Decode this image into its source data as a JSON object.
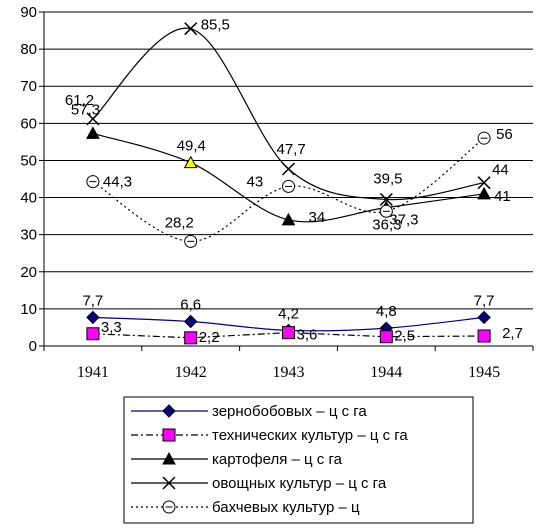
{
  "chart_data": {
    "type": "line",
    "categories": [
      "1941",
      "1942",
      "1943",
      "1944",
      "1945"
    ],
    "ylim": [
      0,
      90
    ],
    "yticks": [
      0,
      10,
      20,
      30,
      40,
      50,
      60,
      70,
      80,
      90
    ],
    "grid": true,
    "legend_position": "bottom",
    "series": [
      {
        "key": "grain",
        "name": "зернобобовых – ц с га",
        "values": [
          7.7,
          6.6,
          4.2,
          4.8,
          7.7
        ],
        "labels": [
          "7,7",
          "6,6",
          "4,2",
          "4,8",
          "7,7"
        ],
        "color": "#000080",
        "marker_color": "#000080",
        "line_style": "solid",
        "marker": "diamond",
        "smooth": true
      },
      {
        "key": "tech",
        "name": "технических культур – ц с га",
        "values": [
          3.3,
          2.2,
          3.6,
          2.5,
          2.7
        ],
        "labels": [
          "3,3",
          "2,2",
          "3,6",
          "2,5",
          "2,7"
        ],
        "color": "#000000",
        "marker_color": "#ff00ff",
        "line_style": "dashdot",
        "marker": "square",
        "smooth": false
      },
      {
        "key": "potato",
        "name": "картофеля – ц с га",
        "values": [
          57.3,
          49.4,
          34,
          37.3,
          41
        ],
        "labels": [
          "57,3",
          "49,4",
          "34",
          "37,3",
          "41"
        ],
        "color": "#000000",
        "marker_color": "#000000",
        "highlight_marker_color": "#ffff00",
        "line_style": "solid",
        "marker": "triangle",
        "smooth": true
      },
      {
        "key": "veg",
        "name": "овощных культур – ц с га",
        "values": [
          61.2,
          85.5,
          47.7,
          39.5,
          44
        ],
        "labels": [
          "61,2",
          "85,5",
          "47,7",
          "39,5",
          "44"
        ],
        "color": "#000000",
        "marker_color": "#000000",
        "line_style": "solid",
        "marker": "x",
        "smooth": true
      },
      {
        "key": "melon",
        "name": "бахчевых культур – ц",
        "values": [
          44.3,
          28.2,
          43,
          36.3,
          56
        ],
        "labels": [
          "44,3",
          "28,2",
          "43",
          "36,3",
          "56"
        ],
        "color": "#000000",
        "marker_color": "#000000",
        "line_style": "dotted",
        "marker": "circle-dash",
        "smooth": true
      }
    ]
  }
}
